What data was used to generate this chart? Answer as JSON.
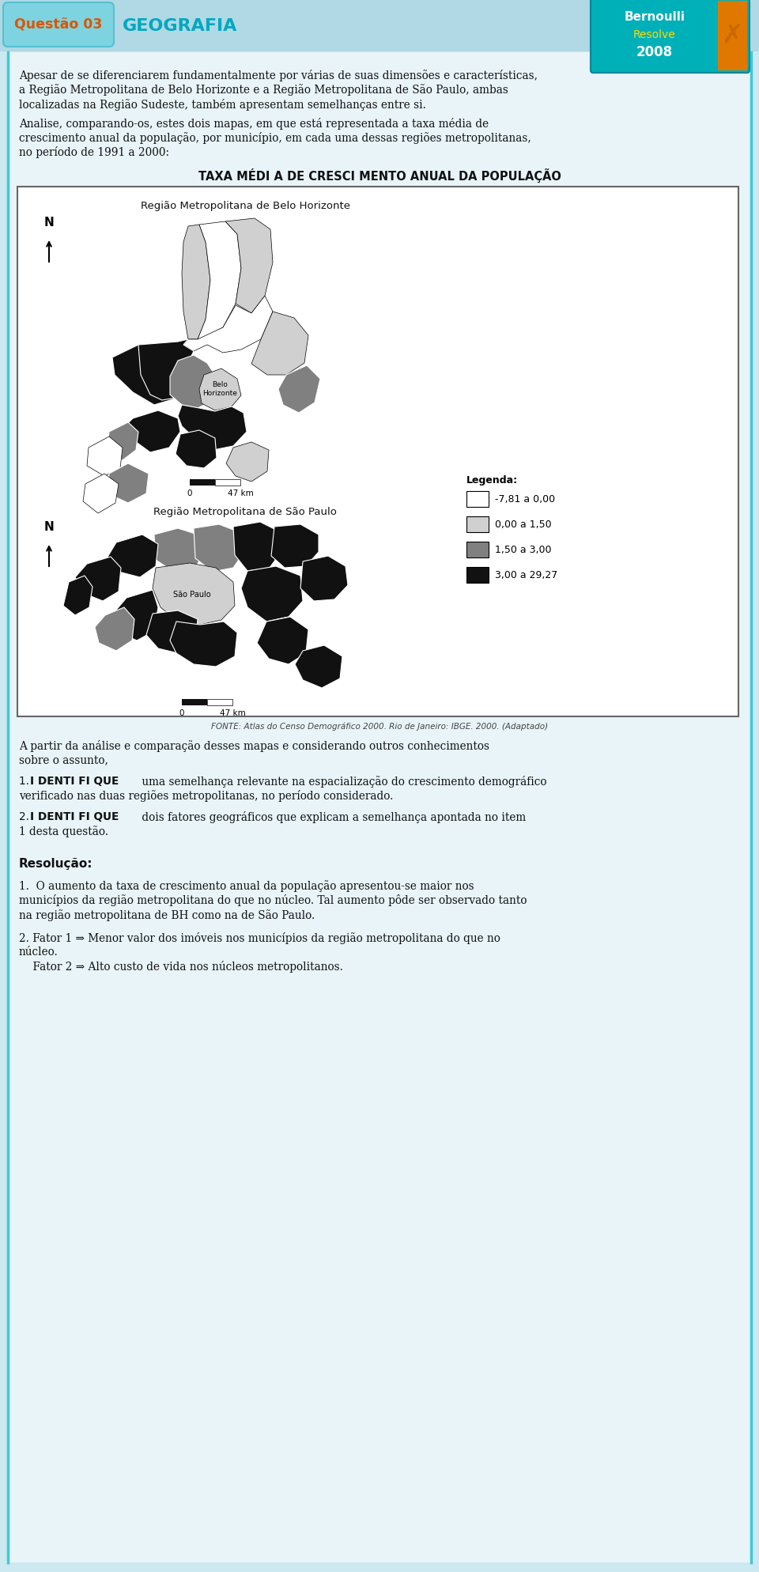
{
  "page_bg": "#cce8f0",
  "header_bg": "#b0d8e5",
  "content_bg": "#e8f4f8",
  "pill_color": "#7dd4e0",
  "pill_text": "Questão 03",
  "pill_text_color": "#dd5500",
  "subject_text": "GEOGRAFIA",
  "subject_color": "#00a8c0",
  "bern_bg": "#00b0b8",
  "bern_text1": "Bernoulli",
  "bern_text2": "Resolve",
  "bern_text3": "2008",
  "border_color": "#40c8d8",
  "map_box_title": "TAXA MÉDI A DE CRESCI MENTO ANUAL DA POPULAÇÃO",
  "map1_label": "Região Metropolitana de Belo Horizonte",
  "map2_label": "Região Metropolitana de São Paulo",
  "bh_city_label": "Belo\nHorizonte",
  "sp_city_label": "São Paulo",
  "legend_title": "Legenda:",
  "legend_colors": [
    "#ffffff",
    "#d0d0d0",
    "#808080",
    "#111111"
  ],
  "legend_labels": [
    "-7,81 a 0,00",
    "0,00 a 1,50",
    "1,50 a 3,00",
    "3,00 a 29,27"
  ],
  "fonte": "FONTE: Atlas do Censo Demográfico 2000. Rio de Janeiro: IBGE. 2000. (Adaptado)",
  "intro1": "Apesar de se diferenciarem fundamentalmente por várias de suas dimensões e características,",
  "intro2": "a Região Metropolitana de Belo Horizonte e a Região Metropolitana de São Paulo, ambas",
  "intro3": "localizadas na Região Sudeste, também apresentam semelhanças entre si.",
  "analise1": "Analise, comparando-os, estes dois mapas, em que está representada a taxa média de",
  "analise2": "crescimento anual da população, por município, em cada uma dessas regiões metropolitanas,",
  "analise3": "no período de 1991 a 2000:",
  "ap1": "A partir da análise e comparação desses mapas e considerando outros conhecimentos",
  "ap2": "sobre o assunto,",
  "q1b": "I DENTI FI QUE",
  "q1r": " uma semelhança relevante na espacialização do crescimento demográfico",
  "q1r2": "verificado nas duas regiões metropolitanas, no período considerado.",
  "q2b": "I DENTI FI QUE",
  "q2r": " dois fatores geográficos que explicam a semelhança apontada no item",
  "q2r2": "1 desta questão.",
  "res_title": "Resolução:",
  "r1l1": "1.  O aumento da taxa de crescimento anual da população apresentou-se maior nos",
  "r1l2": "municípios da região metropolitana do que no núcleo. Tal aumento pôde ser observado tanto",
  "r1l3": "na região metropolitana de BH como na de São Paulo.",
  "r2l1": "2. Fator 1 ⇒ Menor valor dos imóveis nos municípios da região metropolitana do que no",
  "r2l2": "núcleo.",
  "r2l3": "    Fator 2 ⇒ Alto custo de vida nos núcleos metropolitanos.",
  "W": "#ffffff",
  "LG": "#d0d0d0",
  "DG": "#808080",
  "BK": "#111111"
}
